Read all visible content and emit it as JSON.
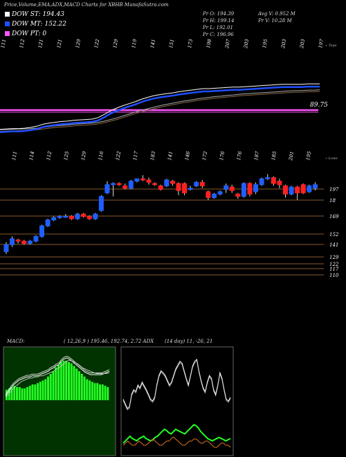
{
  "header": {
    "title": "Price,Volume,EMA,ADX,MACD Charts for XBHB MunafaSutra.com"
  },
  "legend": [
    {
      "label": "DOW ST: 194.43",
      "color": "#ffffff"
    },
    {
      "label": "DOW MT: 152.22",
      "color": "#1f4fff"
    },
    {
      "label": "DOW PT: 0",
      "color": "#ff55ff"
    }
  ],
  "ohlc": {
    "open": "Pr  O: 194.39",
    "high": "Pr  H: 199.14",
    "low": "Pr  L: 192.01",
    "close": "Pr  C: 196.96",
    "avg_vol": "Avg V: 0.952  M",
    "vol": "Pr  V: 10.28  M"
  },
  "top_panel": {
    "side_label": "« Tops",
    "price_label": "89.75",
    "top_labels": [
      "111",
      "112",
      "121",
      "121",
      "129",
      "122",
      "129",
      "119",
      "141",
      "151",
      "173",
      "198",
      "207",
      "203",
      "195",
      "203",
      "203",
      "197"
    ]
  },
  "main_panel": {
    "side_label": "« Lows",
    "low_labels": [
      "111",
      "114",
      "112",
      "125",
      "129",
      "116",
      "122",
      "117",
      "183",
      "141",
      "146",
      "172",
      "176",
      "176",
      "187",
      "185",
      "201",
      "195"
    ],
    "right_labels": [
      "197",
      "18",
      "169",
      "152",
      "141",
      "129",
      "122",
      "117",
      "110"
    ]
  },
  "macd": {
    "label": "MACD:",
    "values": "( 12,26,9 ) 195.46,  192.74,  2.72 ADX"
  },
  "adx": {
    "values": "(14  day) 11,  -26,  21"
  },
  "chart_data": {
    "type": "candlestick",
    "title": "Price,Volume,EMA,ADX,MACD Charts for XBHB MunafaSutra.com",
    "price_levels": [
      197,
      185,
      169,
      152,
      141,
      129,
      122,
      117,
      110
    ],
    "candles": [
      {
        "o": 140,
        "c": 146,
        "h": 148,
        "l": 138,
        "dir": "up"
      },
      {
        "o": 146,
        "c": 151,
        "h": 153,
        "l": 144,
        "dir": "up"
      },
      {
        "o": 150,
        "c": 149,
        "h": 151,
        "l": 147,
        "dir": "down"
      },
      {
        "o": 149,
        "c": 147,
        "h": 150,
        "l": 146,
        "dir": "down"
      },
      {
        "o": 147,
        "c": 149,
        "h": 150,
        "l": 146,
        "dir": "up"
      },
      {
        "o": 149,
        "c": 153,
        "h": 154,
        "l": 148,
        "dir": "up"
      },
      {
        "o": 153,
        "c": 162,
        "h": 163,
        "l": 152,
        "dir": "up"
      },
      {
        "o": 162,
        "c": 167,
        "h": 168,
        "l": 161,
        "dir": "up"
      },
      {
        "o": 167,
        "c": 169,
        "h": 170,
        "l": 166,
        "dir": "up"
      },
      {
        "o": 169,
        "c": 170,
        "h": 171,
        "l": 168,
        "dir": "up"
      },
      {
        "o": 170,
        "c": 170,
        "h": 172,
        "l": 169,
        "dir": "up"
      },
      {
        "o": 170,
        "c": 168,
        "h": 171,
        "l": 167,
        "dir": "down"
      },
      {
        "o": 168,
        "c": 172,
        "h": 173,
        "l": 167,
        "dir": "up"
      },
      {
        "o": 172,
        "c": 170,
        "h": 173,
        "l": 169,
        "dir": "down"
      },
      {
        "o": 170,
        "c": 168,
        "h": 171,
        "l": 167,
        "dir": "down"
      },
      {
        "o": 168,
        "c": 172,
        "h": 173,
        "l": 167,
        "dir": "up"
      },
      {
        "o": 175,
        "c": 187,
        "h": 188,
        "l": 174,
        "dir": "up"
      },
      {
        "o": 190,
        "c": 197,
        "h": 200,
        "l": 189,
        "dir": "up"
      },
      {
        "o": 197,
        "c": 198,
        "h": 199,
        "l": 187,
        "dir": "up"
      },
      {
        "o": 198,
        "c": 197,
        "h": 199,
        "l": 196,
        "dir": "down"
      },
      {
        "o": 196,
        "c": 194,
        "h": 198,
        "l": 193,
        "dir": "down"
      },
      {
        "o": 194,
        "c": 200,
        "h": 201,
        "l": 193,
        "dir": "up"
      },
      {
        "o": 200,
        "c": 202,
        "h": 202,
        "l": 199,
        "dir": "up"
      },
      {
        "o": 202,
        "c": 201,
        "h": 205,
        "l": 200,
        "dir": "down"
      },
      {
        "o": 201,
        "c": 199,
        "h": 203,
        "l": 197,
        "dir": "down"
      },
      {
        "o": 198,
        "c": 197,
        "h": 199,
        "l": 196,
        "dir": "down"
      },
      {
        "o": 196,
        "c": 193,
        "h": 197,
        "l": 192,
        "dir": "down"
      },
      {
        "o": 196,
        "c": 201,
        "h": 202,
        "l": 195,
        "dir": "up"
      },
      {
        "o": 200,
        "c": 198,
        "h": 201,
        "l": 196,
        "dir": "down"
      },
      {
        "o": 198,
        "c": 192,
        "h": 199,
        "l": 188,
        "dir": "down"
      },
      {
        "o": 198,
        "c": 190,
        "h": 199,
        "l": 188,
        "dir": "down"
      },
      {
        "o": 193,
        "c": 194,
        "h": 196,
        "l": 192,
        "dir": "up"
      },
      {
        "o": 196,
        "c": 199,
        "h": 200,
        "l": 195,
        "dir": "up"
      },
      {
        "o": 199,
        "c": 196,
        "h": 201,
        "l": 194,
        "dir": "down"
      },
      {
        "o": 191,
        "c": 186,
        "h": 192,
        "l": 184,
        "dir": "down"
      },
      {
        "o": 186,
        "c": 189,
        "h": 190,
        "l": 185,
        "dir": "up"
      },
      {
        "o": 189,
        "c": 191,
        "h": 192,
        "l": 188,
        "dir": "up"
      },
      {
        "o": 193,
        "c": 196,
        "h": 198,
        "l": 190,
        "dir": "up"
      },
      {
        "o": 195,
        "c": 192,
        "h": 197,
        "l": 190,
        "dir": "down"
      },
      {
        "o": 189,
        "c": 187,
        "h": 190,
        "l": 185,
        "dir": "down"
      },
      {
        "o": 187,
        "c": 198,
        "h": 199,
        "l": 186,
        "dir": "up"
      },
      {
        "o": 198,
        "c": 189,
        "h": 199,
        "l": 187,
        "dir": "down"
      },
      {
        "o": 191,
        "c": 197,
        "h": 199,
        "l": 189,
        "dir": "up"
      },
      {
        "o": 197,
        "c": 202,
        "h": 203,
        "l": 196,
        "dir": "up"
      },
      {
        "o": 202,
        "c": 203,
        "h": 206,
        "l": 201,
        "dir": "up"
      },
      {
        "o": 203,
        "c": 198,
        "h": 204,
        "l": 196,
        "dir": "down"
      },
      {
        "o": 200,
        "c": 197,
        "h": 202,
        "l": 194,
        "dir": "down"
      },
      {
        "o": 196,
        "c": 189,
        "h": 197,
        "l": 186,
        "dir": "down"
      },
      {
        "o": 189,
        "c": 195,
        "h": 196,
        "l": 188,
        "dir": "up"
      },
      {
        "o": 195,
        "c": 190,
        "h": 196,
        "l": 184,
        "dir": "down"
      },
      {
        "o": 190,
        "c": 197,
        "h": 198,
        "l": 189,
        "dir": "down"
      },
      {
        "o": 191,
        "c": 196,
        "h": 197,
        "l": 190,
        "dir": "up"
      },
      {
        "o": 194,
        "c": 197,
        "h": 199,
        "l": 192,
        "dir": "up"
      }
    ],
    "ema_short": [
      80,
      81,
      82,
      82,
      83,
      85,
      88,
      93,
      96,
      98,
      100,
      101,
      103,
      104,
      105,
      106,
      110,
      118,
      127,
      134,
      140,
      145,
      150,
      156,
      161,
      165,
      168,
      170,
      172,
      175,
      177,
      179,
      181,
      183,
      183,
      184,
      185,
      186,
      187,
      187,
      188,
      189,
      190,
      191,
      192,
      193,
      194,
      194,
      194,
      194,
      195,
      195,
      195
    ],
    "ema_mid": [
      78,
      79,
      79,
      80,
      80,
      81,
      82,
      84,
      86,
      88,
      89,
      90,
      92,
      93,
      94,
      95,
      97,
      100,
      104,
      108,
      113,
      118,
      123,
      127,
      131,
      135,
      139,
      142,
      145,
      148,
      151,
      153,
      156,
      158,
      160,
      162,
      163,
      165,
      166,
      168,
      169,
      170,
      171,
      172,
      173,
      174,
      175,
      176,
      177,
      177,
      178,
      178,
      179
    ],
    "macd_line": [
      0.5,
      0.8,
      1.2,
      1.5,
      1.7,
      1.9,
      2.0,
      2.1,
      2.2,
      2.2,
      2.3,
      2.3,
      2.3,
      2.4,
      2.5,
      2.6,
      2.7,
      2.9,
      3.0,
      3.2,
      3.3,
      3.6,
      3.8,
      3.9,
      3.8,
      3.6,
      3.4,
      3.2,
      3.0,
      2.8,
      2.6,
      2.5,
      2.4,
      2.4,
      2.4,
      2.4,
      2.4,
      2.5,
      2.6,
      2.7
    ],
    "macd_signal": [
      0.4,
      0.6,
      0.9,
      1.2,
      1.4,
      1.6,
      1.8,
      1.9,
      2.0,
      2.1,
      2.1,
      2.2,
      2.2,
      2.3,
      2.3,
      2.4,
      2.5,
      2.6,
      2.7,
      2.9,
      3.0,
      3.2,
      3.4,
      3.6,
      3.7,
      3.6,
      3.5,
      3.4,
      3.2,
      3.0,
      2.9,
      2.8,
      2.7,
      2.6,
      2.5,
      2.5,
      2.5,
      2.5,
      2.5,
      2.6
    ],
    "macd_hist": [
      0.8,
      0.9,
      1.0,
      1.1,
      1.0,
      1.0,
      0.9,
      0.9,
      1.0,
      1.1,
      1.2,
      1.2,
      1.3,
      1.4,
      1.5,
      1.6,
      1.8,
      2.0,
      2.2,
      2.5,
      2.7,
      2.9,
      3.0,
      3.0,
      2.9,
      2.8,
      2.6,
      2.4,
      2.2,
      2.0,
      1.8,
      1.6,
      1.5,
      1.4,
      1.3,
      1.3,
      1.2,
      1.2,
      1.1,
      1.0
    ],
    "adx_main": [
      30,
      25,
      20,
      22,
      35,
      40,
      38,
      45,
      42,
      48,
      44,
      40,
      35,
      30,
      28,
      32,
      45,
      55,
      60,
      58,
      55,
      50,
      45,
      48,
      55,
      62,
      66,
      70,
      68,
      60,
      52,
      45,
      55,
      65,
      70,
      72,
      60,
      50,
      42,
      38,
      48,
      55,
      52,
      40,
      35,
      45,
      58,
      52,
      40,
      30,
      28,
      32
    ],
    "adx_plus": [
      6,
      8,
      10,
      12,
      10,
      9,
      8,
      10,
      11,
      12,
      10,
      9,
      8,
      9,
      11,
      12,
      14,
      16,
      18,
      17,
      15,
      14,
      16,
      18,
      17,
      16,
      15,
      14,
      16,
      18,
      20,
      22,
      21,
      19,
      16,
      14,
      12,
      10,
      9,
      8,
      9,
      10,
      11,
      10,
      9,
      8,
      9,
      10
    ],
    "adx_minus": [
      4,
      5,
      6,
      5,
      4,
      4,
      5,
      6,
      5,
      4,
      4,
      5,
      6,
      7,
      6,
      5,
      4,
      4,
      5,
      6,
      6,
      7,
      8,
      7,
      6,
      5,
      4,
      4,
      5,
      6,
      6,
      7,
      7,
      6,
      5,
      5,
      6,
      6,
      5,
      4,
      3,
      3,
      4,
      5,
      5,
      4,
      4,
      3
    ]
  }
}
